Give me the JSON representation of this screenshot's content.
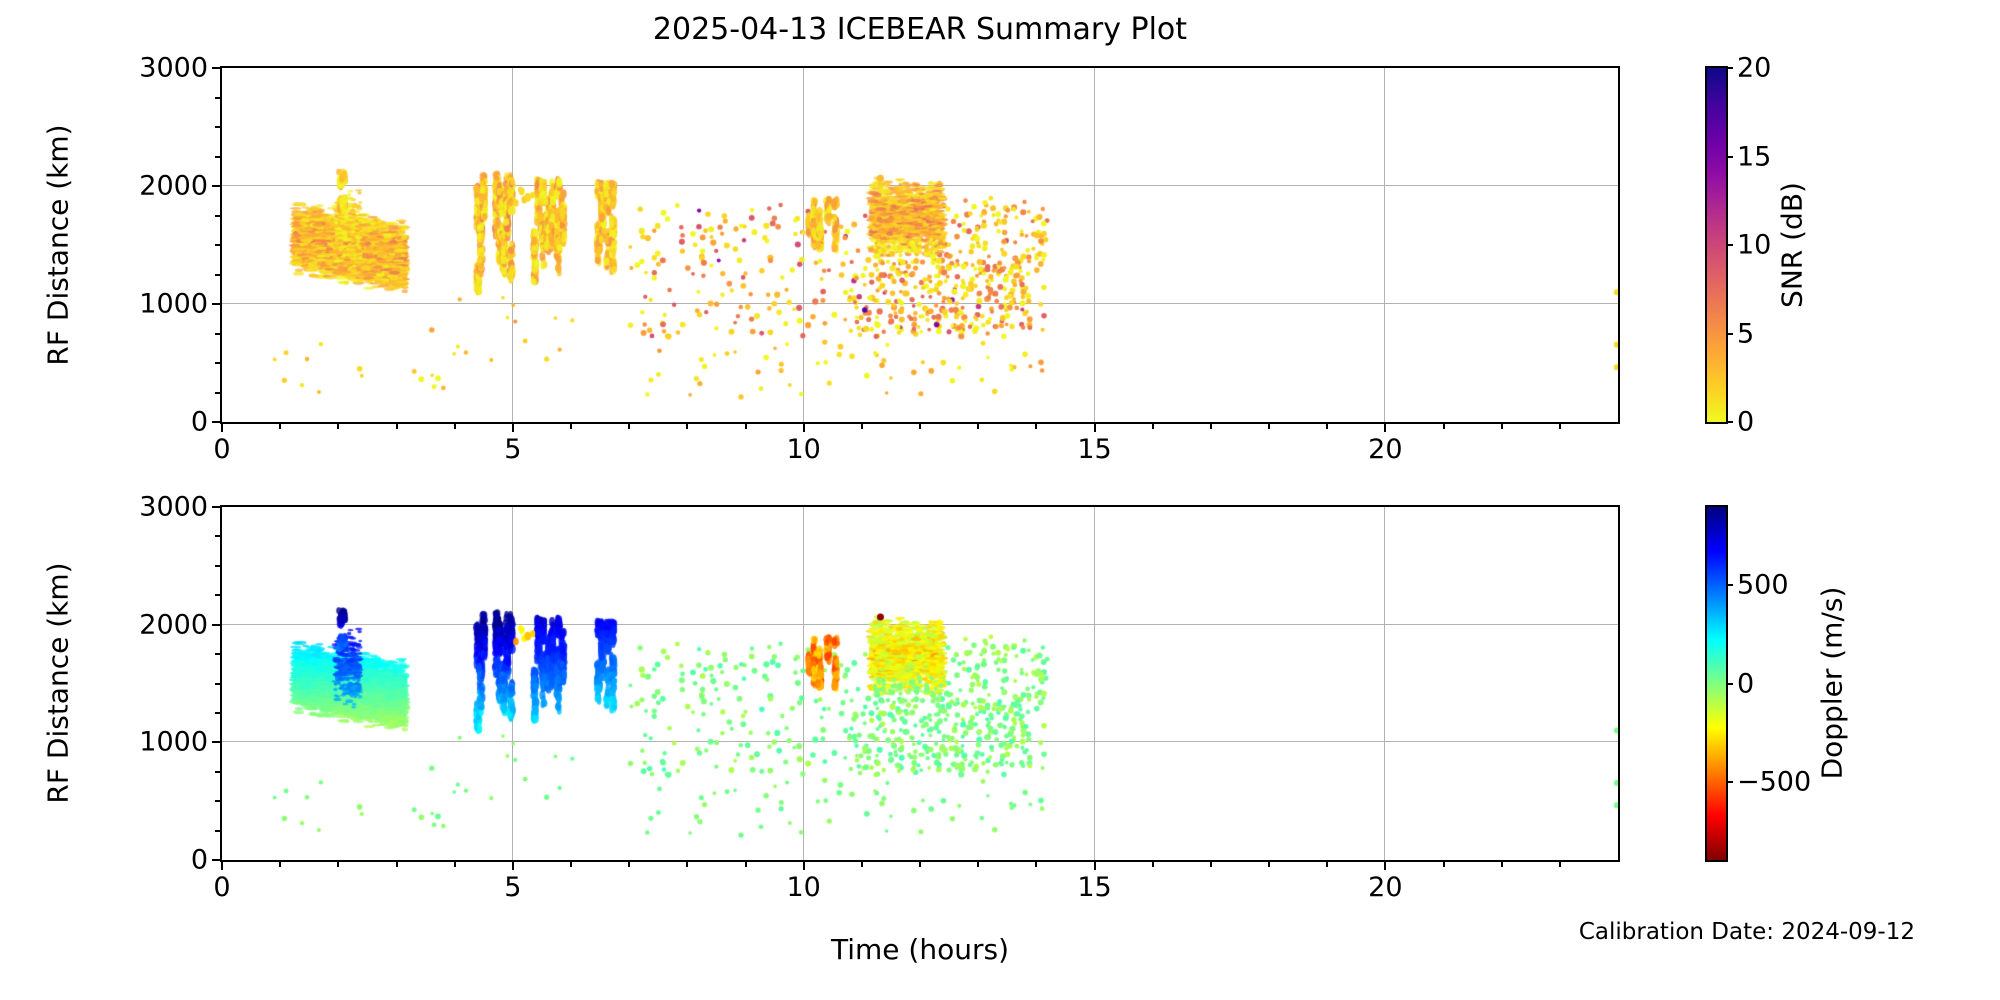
{
  "title": "2025-04-13 ICEBEAR Summary Plot",
  "footer": {
    "calibration": "Calibration Date: 2024-09-12"
  },
  "chart_data": {
    "type": "scatter",
    "title": "2025-04-13 ICEBEAR Summary Plot",
    "xlabel": "Time (hours)",
    "xlim": [
      0,
      24
    ],
    "xticks": [
      0,
      5,
      10,
      15,
      20
    ],
    "x_minor_step": 1,
    "grid": true,
    "grid_color": "#b2b2b2",
    "panels": [
      {
        "id": "snr",
        "ylabel": "RF Distance (km)",
        "ylim": [
          0,
          3000
        ],
        "yticks": [
          0,
          1000,
          2000,
          3000
        ],
        "y_minor_step": 250,
        "color_by": "snr",
        "colorbar": {
          "label": "SNR (dB)",
          "min": 0,
          "max": 20,
          "ticks": [
            0,
            5,
            10,
            15,
            20
          ],
          "colormap": "plasma_r"
        }
      },
      {
        "id": "doppler",
        "ylabel": "RF Distance (km)",
        "ylim": [
          0,
          3000
        ],
        "yticks": [
          0,
          1000,
          2000,
          3000
        ],
        "y_minor_step": 250,
        "color_by": "doppler",
        "colorbar": {
          "label": "Doppler (m/s)",
          "min": -900,
          "max": 900,
          "ticks": [
            500,
            0,
            -500
          ],
          "colormap": "jet_r"
        }
      }
    ],
    "colormaps": {
      "plasma": [
        [
          0,
          "#0d0887"
        ],
        [
          0.1,
          "#41049d"
        ],
        [
          0.2,
          "#6a00a8"
        ],
        [
          0.3,
          "#8f0da4"
        ],
        [
          0.4,
          "#b12a90"
        ],
        [
          0.5,
          "#cc4778"
        ],
        [
          0.6,
          "#e16462"
        ],
        [
          0.7,
          "#f2844b"
        ],
        [
          0.8,
          "#fca636"
        ],
        [
          0.9,
          "#fcce25"
        ],
        [
          1,
          "#f0f921"
        ]
      ],
      "jet": [
        [
          0,
          "#000080"
        ],
        [
          0.125,
          "#0000ff"
        ],
        [
          0.375,
          "#00ffff"
        ],
        [
          0.5,
          "#80ff80"
        ],
        [
          0.625,
          "#ffff00"
        ],
        [
          0.875,
          "#ff0000"
        ],
        [
          1,
          "#800000"
        ]
      ]
    },
    "clusters": [
      {
        "id": "main-blob",
        "kind": "blob",
        "seed": 11,
        "t": [
          1.25,
          3.15
        ],
        "rf": [
          1160,
          1790
        ],
        "rf_drift": -170,
        "n": 2600,
        "snr": [
          0,
          5.5
        ],
        "snr_core": 3,
        "doppler": [
          -50,
          260
        ],
        "doppler_grad_rf": true,
        "size": [
          9,
          3.2
        ]
      },
      {
        "id": "blob-blue-patch",
        "kind": "blob",
        "seed": 22,
        "t": [
          1.95,
          2.38
        ],
        "rf": [
          1280,
          1980
        ],
        "n": 240,
        "snr": [
          0,
          4
        ],
        "doppler": [
          320,
          720
        ],
        "doppler_grad_rf": true,
        "size": [
          6,
          3
        ]
      },
      {
        "id": "blob-top-spike",
        "kind": "streaks",
        "seed": 33,
        "cols": [
          2.04,
          2.09
        ],
        "rf": [
          1800,
          2120
        ],
        "n_per_col": 40,
        "snr": [
          0,
          4
        ],
        "doppler": [
          450,
          900
        ],
        "doppler_grad_rf": true
      },
      {
        "id": "left-sparse-dots",
        "kind": "scatter",
        "seed": 44,
        "t": [
          0.3,
          4.3
        ],
        "rf": [
          230,
          660
        ],
        "n": 16,
        "snr": [
          0,
          4
        ],
        "doppler": [
          -40,
          40
        ],
        "size": [
          4.6,
          4.6
        ]
      },
      {
        "id": "mid-low-sparse-dots",
        "kind": "scatter",
        "seed": 55,
        "t": [
          3.4,
          7.0
        ],
        "rf": [
          500,
          1060
        ],
        "n": 14,
        "snr": [
          0,
          6
        ],
        "doppler": [
          -40,
          40
        ],
        "size": [
          4.6,
          4.6
        ]
      },
      {
        "id": "streaks-4.5h",
        "kind": "streaks",
        "seed": 66,
        "cols": [
          4.4,
          4.45,
          4.5,
          4.72,
          4.78,
          4.84,
          4.9,
          4.97
        ],
        "rf": [
          1100,
          2100
        ],
        "n_per_col": 95,
        "snr": [
          0,
          7
        ],
        "doppler": [
          200,
          900
        ],
        "doppler_grad_rf": true
      },
      {
        "id": "streaks-5.5h",
        "kind": "streaks",
        "seed": 77,
        "cols": [
          5.38,
          5.44,
          5.52,
          5.6,
          5.68,
          5.78,
          5.86
        ],
        "rf": [
          1150,
          2050
        ],
        "n_per_col": 85,
        "snr": [
          0,
          6
        ],
        "doppler": [
          280,
          750
        ],
        "doppler_grad_rf": true
      },
      {
        "id": "streaks-6.5h",
        "kind": "streaks",
        "seed": 88,
        "cols": [
          6.47,
          6.54,
          6.63,
          6.72
        ],
        "rf": [
          1260,
          2020
        ],
        "n_per_col": 75,
        "snr": [
          0,
          6
        ],
        "doppler": [
          260,
          680
        ],
        "doppler_grad_rf": true
      },
      {
        "id": "orange-outliers-5.2h",
        "kind": "scatter",
        "seed": 99,
        "t": [
          5.05,
          5.35
        ],
        "rf": [
          1840,
          2000
        ],
        "n": 6,
        "snr": [
          1,
          4
        ],
        "doppler": [
          -420,
          -180
        ],
        "size": [
          6,
          8
        ]
      },
      {
        "id": "mid-scatter",
        "kind": "scatter",
        "seed": 110,
        "t": [
          7.0,
          14.2
        ],
        "rf": [
          720,
          1840
        ],
        "n": 300,
        "snr": [
          0,
          9
        ],
        "snr_hot": 0.07,
        "doppler": [
          -90,
          90
        ],
        "size": [
          5,
          5
        ]
      },
      {
        "id": "mid-scatter-dense",
        "kind": "scatter",
        "seed": 121,
        "t": [
          10.7,
          13.9
        ],
        "rf": [
          760,
          1380
        ],
        "n": 260,
        "snr": [
          0,
          8
        ],
        "snr_hot": 0.08,
        "doppler": [
          -90,
          90
        ],
        "size": [
          5,
          5
        ]
      },
      {
        "id": "low-scatter",
        "kind": "scatter",
        "seed": 132,
        "t": [
          7.2,
          14.1
        ],
        "rf": [
          210,
          700
        ],
        "n": 55,
        "snr": [
          0,
          5
        ],
        "doppler": [
          -50,
          50
        ],
        "size": [
          4.6,
          4.6
        ]
      },
      {
        "id": "streaks-10.2h",
        "kind": "streaks",
        "seed": 143,
        "cols": [
          10.1,
          10.18,
          10.28,
          10.42,
          10.55
        ],
        "rf": [
          1440,
          1880
        ],
        "n_per_col": 48,
        "snr": [
          0,
          6
        ],
        "doppler": [
          -580,
          -260
        ]
      },
      {
        "id": "blob-11.7h",
        "kind": "blob",
        "seed": 154,
        "t": [
          11.15,
          12.4
        ],
        "rf": [
          1390,
          2070
        ],
        "n": 1300,
        "snr": [
          0,
          6.5
        ],
        "snr_core": 3,
        "doppler": [
          -300,
          -40
        ],
        "doppler_core": -160,
        "size": [
          7,
          3.2
        ]
      },
      {
        "id": "blob-green-fringe",
        "kind": "scatter",
        "seed": 165,
        "t": [
          11.2,
          12.5
        ],
        "rf": [
          1350,
          1560
        ],
        "n": 40,
        "snr": [
          0,
          3
        ],
        "doppler": [
          -40,
          30
        ],
        "size": [
          5,
          5
        ]
      },
      {
        "id": "post-blob-dots",
        "kind": "scatter",
        "seed": 176,
        "t": [
          12.45,
          14.15
        ],
        "rf": [
          1280,
          1900
        ],
        "n": 55,
        "snr": [
          0,
          6
        ],
        "doppler": [
          -120,
          40
        ],
        "size": [
          5,
          5
        ]
      },
      {
        "id": "dark-red-outlier",
        "kind": "points",
        "pts": [
          [
            11.32,
            2065
          ]
        ],
        "snr": [
          3,
          3
        ],
        "doppler": [
          -870,
          -870
        ],
        "size": [
          7,
          7
        ]
      },
      {
        "id": "purple-outlier",
        "kind": "points",
        "pts": [
          [
            11.05,
            950
          ]
        ],
        "snr": [
          17,
          17
        ],
        "doppler": [
          -60,
          -60
        ],
        "size": [
          5.5,
          5.5
        ]
      },
      {
        "id": "right-edge-dots",
        "kind": "points",
        "pts": [
          [
            23.98,
            1100
          ],
          [
            23.98,
            655
          ],
          [
            23.98,
            465
          ]
        ],
        "snr": [
          1,
          2
        ],
        "doppler": [
          0,
          25
        ],
        "size": [
          6,
          6
        ]
      }
    ]
  }
}
